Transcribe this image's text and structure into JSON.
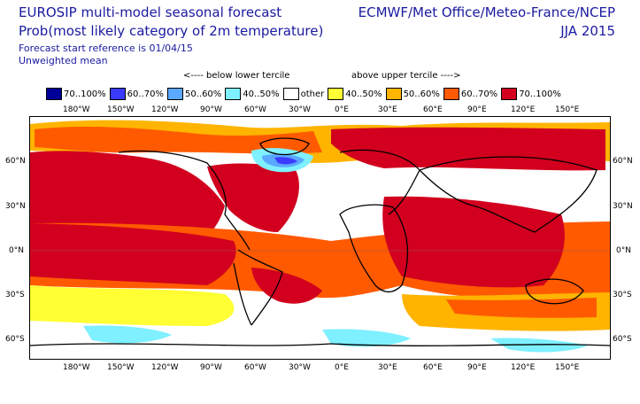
{
  "header": {
    "title_line1": "EUROSIP multi-model seasonal forecast",
    "title_line2": "Prob(most likely category of 2m temperature)",
    "forecast_ref": "Forecast start reference is 01/04/15",
    "mean_type": "Unweighted mean",
    "provider": "ECMWF/Met Office/Meteo-France/NCEP",
    "season": "JJA 2015"
  },
  "legend": {
    "below_label": "<---- below lower tercile",
    "above_label": "above upper tercile ---->",
    "items": [
      {
        "label": "70..100%",
        "color": "#000099"
      },
      {
        "label": "60..70%",
        "color": "#3b3bff"
      },
      {
        "label": "50..60%",
        "color": "#5aa8ff"
      },
      {
        "label": "40..50%",
        "color": "#7ef0ff"
      },
      {
        "label": "other",
        "color": "#ffffff"
      },
      {
        "label": "40..50%",
        "color": "#ffff33"
      },
      {
        "label": "50..60%",
        "color": "#ffb400"
      },
      {
        "label": "60..70%",
        "color": "#ff5a00"
      },
      {
        "label": "70..100%",
        "color": "#d2001e"
      }
    ]
  },
  "axes": {
    "lon_labels": [
      "180°W",
      "150°W",
      "120°W",
      "90°W",
      "60°W",
      "30°W",
      "0°E",
      "30°E",
      "60°E",
      "90°E",
      "120°E",
      "150°E"
    ],
    "lat_labels": [
      "60°N",
      "30°N",
      "0°N",
      "30°S",
      "60°S"
    ]
  }
}
